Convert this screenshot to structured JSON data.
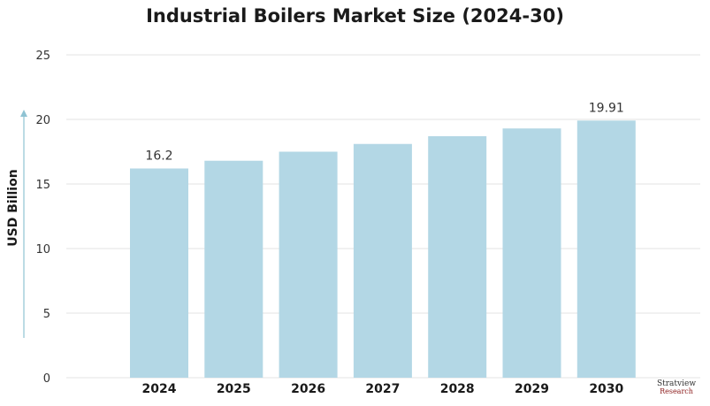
{
  "chart_data": {
    "type": "bar",
    "title": "Industrial Boilers Market Size (2024-30)",
    "ylabel": "USD Billion",
    "xlabel": "",
    "categories": [
      "2024",
      "2025",
      "2026",
      "2027",
      "2028",
      "2029",
      "2030"
    ],
    "values": [
      16.2,
      16.8,
      17.5,
      18.1,
      18.7,
      19.3,
      19.91
    ],
    "data_labels": {
      "2024": "16.2",
      "2030": "19.91"
    },
    "ylim": [
      0,
      25
    ],
    "yticks": [
      0,
      5,
      10,
      15,
      20,
      25
    ],
    "grid": true,
    "bar_color": "#b3d7e5",
    "arrow_color": "#8fc3d3"
  },
  "logo": {
    "line1": "Stratview",
    "line2": "Research"
  }
}
